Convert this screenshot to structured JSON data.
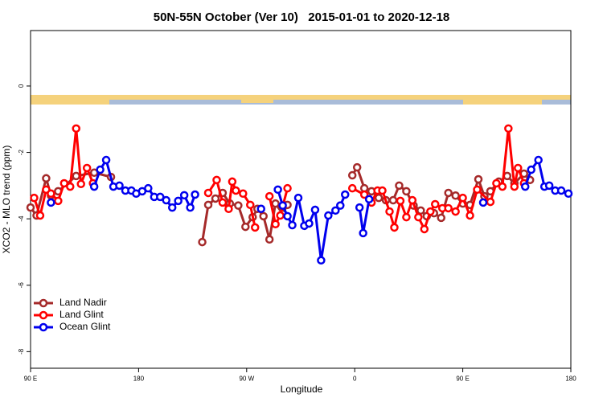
{
  "chart_data": {
    "type": "line",
    "title": "50N-55N October (Ver 10)   2015-01-01 to 2020-12-18",
    "x_label": "Longitude",
    "y_label": "XCO2 - MLO trend (ppm)",
    "xlim": [
      90,
      540
    ],
    "ylim": [
      -8.5,
      1.67
    ],
    "xticks": [
      {
        "value": 90,
        "label": "90 E"
      },
      180,
      {
        "value": 270,
        "label": "90 W"
      },
      {
        "value": 360,
        "label": "0"
      },
      {
        "value": 450,
        "label": "90 E"
      },
      {
        "value": 540,
        "label": "180"
      }
    ],
    "yticks": [
      0,
      -2,
      -4,
      -6,
      -8
    ],
    "legend": "bottom-left",
    "series": [
      {
        "name": "Land Nadir",
        "color": "#a52a2a",
        "x": [
          90,
          95,
          103,
          107,
          113,
          128,
          143,
          157,
          null,
          233,
          238,
          244,
          250,
          256,
          263,
          269,
          275,
          279,
          284,
          289,
          294,
          300,
          304,
          null,
          358,
          362,
          368,
          374,
          380,
          386,
          392,
          397,
          403,
          409,
          415,
          420,
          426,
          432,
          438,
          444,
          450,
          456,
          463,
          468,
          473,
          480,
          487,
          493,
          501,
          506
        ],
        "values": [
          -3.66,
          -3.9,
          -2.78,
          -3.3,
          -3.17,
          -2.71,
          -2.61,
          -2.74,
          null,
          -4.7,
          -3.58,
          -3.39,
          -3.22,
          -3.54,
          -3.6,
          -4.24,
          -3.95,
          -3.7,
          -3.92,
          -4.62,
          -3.54,
          -3.85,
          -3.58,
          null,
          -2.69,
          -2.45,
          -3.08,
          -3.17,
          -3.37,
          -3.44,
          -3.44,
          -3.0,
          -3.17,
          -3.6,
          -3.75,
          -3.92,
          -3.83,
          -3.97,
          -3.22,
          -3.3,
          -3.54,
          -3.58,
          -2.81,
          -3.32,
          -3.17,
          -2.88,
          -2.71,
          -2.93,
          -2.64,
          -2.83
        ]
      },
      {
        "name": "Land Glint",
        "color": "#ff0000",
        "x": [
          93,
          98,
          103,
          107,
          113,
          118,
          123,
          128,
          132,
          137,
          142,
          null,
          238,
          245,
          250,
          255,
          258,
          261,
          267,
          273,
          277,
          null,
          289,
          294,
          298,
          304,
          null,
          358,
          368,
          374,
          379,
          383,
          389,
          393,
          398,
          403,
          408,
          413,
          418,
          423,
          427,
          433,
          438,
          444,
          450,
          456,
          462,
          473,
          478,
          483,
          488,
          493,
          496,
          501
        ],
        "values": [
          -3.37,
          -3.9,
          -3.12,
          -3.24,
          -3.46,
          -2.93,
          -3.03,
          -1.28,
          -2.95,
          -2.47,
          -2.93,
          null,
          -3.22,
          -2.83,
          -3.51,
          -3.7,
          -2.88,
          -3.15,
          -3.24,
          -3.58,
          -4.26,
          null,
          -3.32,
          -4.16,
          -3.9,
          -3.08,
          null,
          -3.08,
          -3.27,
          -3.51,
          -3.15,
          -3.15,
          -3.78,
          -4.26,
          -3.46,
          -3.95,
          -3.44,
          -3.95,
          -4.31,
          -3.78,
          -3.56,
          -3.68,
          -3.68,
          -3.78,
          -3.37,
          -3.9,
          -3.12,
          -3.49,
          -2.93,
          -3.03,
          -1.28,
          -3.03,
          -2.47,
          -2.93
        ]
      },
      {
        "name": "Ocean Glint",
        "color": "#0000ee",
        "x": [
          107,
          null,
          143,
          148,
          153,
          159,
          164,
          169,
          174,
          178,
          183,
          188,
          193,
          198,
          203,
          208,
          213,
          218,
          223,
          227,
          null,
          282,
          null,
          296,
          300,
          304,
          308,
          313,
          318,
          322,
          327,
          332,
          338,
          344,
          348,
          352,
          null,
          364,
          367,
          372,
          null,
          467,
          null,
          502,
          507,
          513,
          518,
          522,
          527,
          532,
          538
        ],
        "values": [
          -3.51,
          null,
          -3.03,
          -2.52,
          -2.23,
          -3.03,
          -3.0,
          -3.15,
          -3.15,
          -3.24,
          -3.17,
          -3.08,
          -3.34,
          -3.34,
          -3.44,
          -3.66,
          -3.46,
          -3.29,
          -3.66,
          -3.27,
          null,
          -3.7,
          null,
          -3.12,
          -3.6,
          -3.92,
          -4.19,
          -3.37,
          -4.21,
          -4.14,
          -3.73,
          -5.25,
          -3.9,
          -3.75,
          -3.6,
          -3.27,
          null,
          -3.66,
          -4.43,
          -3.41,
          null,
          -3.51,
          null,
          -3.03,
          -2.52,
          -2.23,
          -3.03,
          -3.0,
          -3.15,
          -3.15,
          -3.24
        ]
      }
    ]
  }
}
